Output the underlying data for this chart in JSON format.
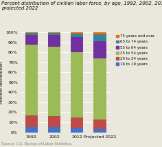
{
  "title": "Percent distribution of civilian labor force, by age, 1992, 2002, 2012, and\nprojected 2022",
  "categories": [
    "1992",
    "2002",
    "2012",
    "Projected 2022"
  ],
  "series": {
    "16 to 19 years": [
      5.5,
      5.5,
      4.5,
      3.5
    ],
    "20 to 24 years": [
      11.5,
      11.0,
      10.0,
      9.0
    ],
    "25 to 54 years": [
      71.0,
      69.0,
      65.5,
      61.5
    ],
    "55 to 64 years": [
      9.0,
      11.5,
      15.0,
      17.0
    ],
    "65 to 74 years": [
      2.5,
      2.5,
      4.0,
      7.0
    ],
    "75 years and over": [
      0.5,
      0.5,
      1.0,
      2.0
    ]
  },
  "colors": {
    "16 to 19 years": "#4472C4",
    "20 to 24 years": "#BE4B48",
    "25 to 54 years": "#9BBB59",
    "55 to 64 years": "#7030A0",
    "65 to 74 years": "#31849B",
    "75 years and over": "#E36C09"
  },
  "ylabel": "Percent distribution",
  "source": "Source: U.S. Bureau of Labor Statistics.",
  "ylim": [
    0,
    100
  ],
  "yticks": [
    0,
    10,
    20,
    30,
    40,
    50,
    60,
    70,
    80,
    90,
    100
  ],
  "ytick_labels": [
    "0%",
    "10%",
    "20%",
    "30%",
    "40%",
    "50%",
    "60%",
    "70%",
    "80%",
    "90%",
    "100%"
  ],
  "bg_color": "#EAE8DC",
  "title_fontsize": 5.0,
  "tick_fontsize": 4.5,
  "legend_fontsize": 4.0,
  "ylabel_fontsize": 4.5,
  "source_fontsize": 3.8,
  "bar_width": 0.55
}
